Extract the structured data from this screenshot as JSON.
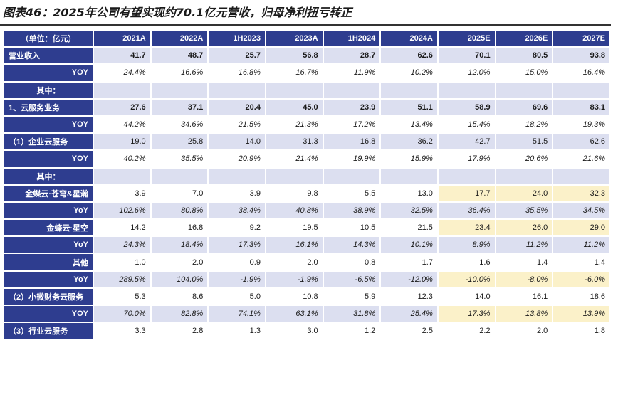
{
  "title": "图表46：2025年公司有望实现约70.1亿元营收，归母净利扭亏转正",
  "header": [
    "（单位：亿元）",
    "2021A",
    "2022A",
    "1H2023",
    "2023A",
    "1H2024",
    "2024A",
    "2025E",
    "2026E",
    "2027E"
  ],
  "rows": [
    {
      "label": "营业收入",
      "align": "left",
      "shade": true,
      "bold": true,
      "pct": false,
      "hl": false,
      "values": [
        "41.7",
        "48.7",
        "25.7",
        "56.8",
        "28.7",
        "62.6",
        "70.1",
        "80.5",
        "93.8"
      ]
    },
    {
      "label": "YOY",
      "align": "right",
      "shade": false,
      "bold": false,
      "pct": true,
      "hl": false,
      "values": [
        "24.4%",
        "16.6%",
        "16.8%",
        "16.7%",
        "11.9%",
        "10.2%",
        "12.0%",
        "15.0%",
        "16.4%"
      ]
    },
    {
      "label": "其中：",
      "align": "center",
      "shade": true,
      "bold": false,
      "pct": false,
      "hl": false,
      "values": [
        "",
        "",
        "",
        "",
        "",
        "",
        "",
        "",
        ""
      ]
    },
    {
      "label": "1、云服务业务",
      "align": "left",
      "shade": true,
      "bold": true,
      "pct": false,
      "hl": false,
      "values": [
        "27.6",
        "37.1",
        "20.4",
        "45.0",
        "23.9",
        "51.1",
        "58.9",
        "69.6",
        "83.1"
      ]
    },
    {
      "label": "YOY",
      "align": "right",
      "shade": false,
      "bold": false,
      "pct": true,
      "hl": false,
      "values": [
        "44.2%",
        "34.6%",
        "21.5%",
        "21.3%",
        "17.2%",
        "13.4%",
        "15.4%",
        "18.2%",
        "19.3%"
      ]
    },
    {
      "label": "（1）企业云服务",
      "align": "left",
      "shade": true,
      "bold": false,
      "pct": false,
      "hl": false,
      "values": [
        "19.0",
        "25.8",
        "14.0",
        "31.3",
        "16.8",
        "36.2",
        "42.7",
        "51.5",
        "62.6"
      ]
    },
    {
      "label": "YOY",
      "align": "right",
      "shade": false,
      "bold": false,
      "pct": true,
      "hl": false,
      "values": [
        "40.2%",
        "35.5%",
        "20.9%",
        "21.4%",
        "19.9%",
        "15.9%",
        "17.9%",
        "20.6%",
        "21.6%"
      ]
    },
    {
      "label": "其中：",
      "align": "center",
      "shade": true,
      "bold": false,
      "pct": false,
      "hl": false,
      "values": [
        "",
        "",
        "",
        "",
        "",
        "",
        "",
        "",
        ""
      ]
    },
    {
      "label": "金蝶云·苍穹&星瀚",
      "align": "right",
      "shade": false,
      "bold": false,
      "pct": false,
      "hl": true,
      "values": [
        "3.9",
        "7.0",
        "3.9",
        "9.8",
        "5.5",
        "13.0",
        "17.7",
        "24.0",
        "32.3"
      ]
    },
    {
      "label": "YoY",
      "align": "right",
      "shade": true,
      "bold": false,
      "pct": true,
      "hl": false,
      "values": [
        "102.6%",
        "80.8%",
        "38.4%",
        "40.8%",
        "38.9%",
        "32.5%",
        "36.4%",
        "35.5%",
        "34.5%"
      ]
    },
    {
      "label": "金蝶云·星空",
      "align": "right",
      "shade": false,
      "bold": false,
      "pct": false,
      "hl": true,
      "values": [
        "14.2",
        "16.8",
        "9.2",
        "19.5",
        "10.5",
        "21.5",
        "23.4",
        "26.0",
        "29.0"
      ]
    },
    {
      "label": "YoY",
      "align": "right",
      "shade": true,
      "bold": false,
      "pct": true,
      "hl": false,
      "values": [
        "24.3%",
        "18.4%",
        "17.3%",
        "16.1%",
        "14.3%",
        "10.1%",
        "8.9%",
        "11.2%",
        "11.2%"
      ]
    },
    {
      "label": "其他",
      "align": "right",
      "shade": false,
      "bold": false,
      "pct": false,
      "hl": false,
      "values": [
        "1.0",
        "2.0",
        "0.9",
        "2.0",
        "0.8",
        "1.7",
        "1.6",
        "1.4",
        "1.4"
      ]
    },
    {
      "label": "YoY",
      "align": "right",
      "shade": true,
      "bold": false,
      "pct": true,
      "hl": true,
      "values": [
        "289.5%",
        "104.0%",
        "-1.9%",
        "-1.9%",
        "-6.5%",
        "-12.0%",
        "-10.0%",
        "-8.0%",
        "-6.0%"
      ]
    },
    {
      "label": "（2）小微财务云服务",
      "align": "left",
      "shade": false,
      "bold": false,
      "pct": false,
      "hl": false,
      "values": [
        "5.3",
        "8.6",
        "5.0",
        "10.8",
        "5.9",
        "12.3",
        "14.0",
        "16.1",
        "18.6"
      ]
    },
    {
      "label": "YOY",
      "align": "right",
      "shade": true,
      "bold": false,
      "pct": true,
      "hl": true,
      "values": [
        "70.0%",
        "82.8%",
        "74.1%",
        "63.1%",
        "31.8%",
        "25.4%",
        "17.3%",
        "13.8%",
        "13.9%"
      ]
    },
    {
      "label": "（3）行业云服务",
      "align": "left",
      "shade": false,
      "bold": false,
      "pct": false,
      "hl": false,
      "values": [
        "3.3",
        "2.8",
        "1.3",
        "3.0",
        "1.2",
        "2.5",
        "2.2",
        "2.0",
        "1.8"
      ]
    }
  ],
  "colors": {
    "header_bg": "#2e3d8f",
    "shade_bg": "#dcdff0",
    "highlight_bg": "#fbf1c9"
  }
}
